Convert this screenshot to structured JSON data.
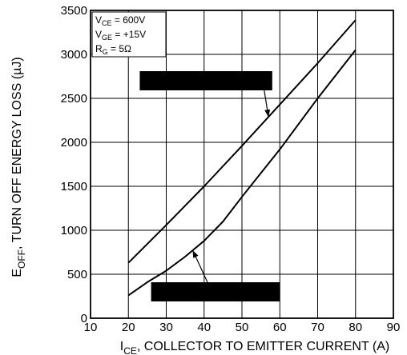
{
  "chart_data": {
    "type": "line",
    "title": "",
    "x_axis": {
      "symbol": "I",
      "subscript": "CE",
      "label_rest": ", COLLECTOR TO EMITTER CURRENT (A)",
      "range": [
        10,
        90
      ],
      "ticks": [
        10,
        20,
        30,
        40,
        50,
        60,
        70,
        80,
        90
      ]
    },
    "y_axis": {
      "symbol": "E",
      "subscript": "OFF",
      "label_rest": ", TURN OFF ENERGY LOSS (µJ)",
      "range": [
        0,
        3500
      ],
      "ticks": [
        0,
        500,
        1000,
        1500,
        2000,
        2500,
        3000,
        3500
      ]
    },
    "grid": true,
    "conditions": [
      {
        "sym": "V",
        "sub": "CE",
        "rest": " =  600V"
      },
      {
        "sym": "V",
        "sub": "GE",
        "rest": " =  +15V"
      },
      {
        "sym": "R",
        "sub": "G",
        "rest": " = 5Ω"
      }
    ],
    "series": [
      {
        "name": "",
        "x": [
          20,
          30,
          40,
          50,
          60,
          70,
          80
        ],
        "y": [
          630,
          1060,
          1500,
          1960,
          2430,
          2900,
          3390
        ]
      },
      {
        "name": "",
        "x": [
          20,
          25,
          30,
          35,
          40,
          45,
          50,
          55,
          60,
          70,
          80
        ],
        "y": [
          260,
          410,
          540,
          700,
          880,
          1100,
          1380,
          1650,
          1920,
          2500,
          3050
        ]
      }
    ],
    "callouts": [
      {
        "series": 0,
        "at_x": 57,
        "box_x": [
          23,
          58
        ],
        "box_y": 2700
      },
      {
        "series": 1,
        "at_x": 37,
        "box_x": [
          26,
          60
        ],
        "box_y": 300
      }
    ]
  }
}
